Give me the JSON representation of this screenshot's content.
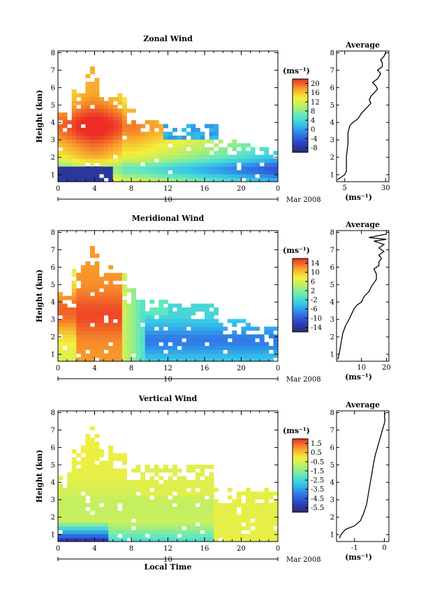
{
  "chart_data": [
    {
      "type": "heatmap",
      "title": "Zonal Wind",
      "ylabel": "Height (km)",
      "xlabel": "",
      "unit_label": "(ms⁻¹)",
      "date_label": "Mar 2008",
      "day_label": "10",
      "x_ticks": [
        "0",
        "4",
        "8",
        "12",
        "16",
        "20",
        "0"
      ],
      "x_range": [
        0,
        24
      ],
      "y_ticks": [
        "1",
        "2",
        "3",
        "4",
        "5",
        "6",
        "7",
        "8"
      ],
      "y_range": [
        0.6,
        8.1
      ],
      "colorbar": {
        "ticks": [
          "20",
          "16",
          "12",
          "8",
          "4",
          "0",
          "-4",
          "-8"
        ],
        "range": [
          -10,
          22
        ]
      },
      "kind": "zonal"
    },
    {
      "type": "heatmap",
      "title": "Meridional Wind",
      "ylabel": "Height (km)",
      "xlabel": "",
      "unit_label": "(ms⁻¹)",
      "date_label": "Mar 2008",
      "day_label": "10",
      "x_ticks": [
        "0",
        "4",
        "8",
        "12",
        "16",
        "20",
        "0"
      ],
      "x_range": [
        0,
        24
      ],
      "y_ticks": [
        "1",
        "2",
        "3",
        "4",
        "5",
        "6",
        "7",
        "8"
      ],
      "y_range": [
        0.6,
        8.1
      ],
      "colorbar": {
        "ticks": [
          "14",
          "10",
          "6",
          "2",
          "-2",
          "-6",
          "-10",
          "-14"
        ],
        "range": [
          -16,
          16
        ]
      },
      "kind": "meridional"
    },
    {
      "type": "heatmap",
      "title": "Vertical Wind",
      "ylabel": "Height (km)",
      "xlabel": "Local Time",
      "unit_label": "(ms⁻¹)",
      "date_label": "Mar 2008",
      "day_label": "10",
      "x_ticks": [
        "0",
        "4",
        "8",
        "12",
        "16",
        "20",
        "0"
      ],
      "x_range": [
        0,
        24
      ],
      "y_ticks": [
        "1",
        "2",
        "3",
        "4",
        "5",
        "6",
        "7",
        "8"
      ],
      "y_range": [
        0.6,
        8.1
      ],
      "colorbar": {
        "ticks": [
          "1.5",
          "0.5",
          "-0.5",
          "-1.5",
          "-2.5",
          "-3.5",
          "-4.5",
          "-5.5"
        ],
        "range": [
          -6,
          2
        ]
      },
      "kind": "vertical"
    },
    {
      "type": "line",
      "title": "Average",
      "xlabel": "(ms⁻¹)",
      "x_ticks": [
        "5",
        "30"
      ],
      "x_tick_values": [
        5,
        30
      ],
      "x_range": [
        0,
        32
      ],
      "y_ticks": [
        "1",
        "2",
        "3",
        "4",
        "5",
        "6",
        "7",
        "8"
      ],
      "y_range": [
        0.6,
        8.1
      ],
      "x": [
        0.5,
        2,
        5,
        6,
        6,
        6,
        6.5,
        7,
        7,
        7,
        7.5,
        8,
        10,
        13,
        15,
        17,
        19,
        21,
        20,
        21,
        23,
        25,
        24,
        22,
        25,
        27,
        25,
        28,
        28,
        27,
        29,
        30
      ],
      "y": [
        0.7,
        0.8,
        1.0,
        1.2,
        1.6,
        2.0,
        2.4,
        2.8,
        3.1,
        3.4,
        3.6,
        3.8,
        4.0,
        4.2,
        4.5,
        4.7,
        4.9,
        5.1,
        5.3,
        5.5,
        5.7,
        5.9,
        6.1,
        6.3,
        6.5,
        6.8,
        7.0,
        7.2,
        7.4,
        7.6,
        7.8,
        8.0
      ]
    },
    {
      "type": "line",
      "title": "Average",
      "xlabel": "(ms⁻¹)",
      "x_ticks": [
        "10",
        "20"
      ],
      "x_tick_values": [
        10,
        20
      ],
      "x_range": [
        0,
        21
      ],
      "y_ticks": [
        "1",
        "2",
        "3",
        "4",
        "5",
        "6",
        "7",
        "8"
      ],
      "y_range": [
        0.6,
        8.1
      ],
      "x": [
        0.5,
        1,
        1.5,
        2,
        2.5,
        3.5,
        5,
        6,
        7,
        8,
        10,
        11,
        13,
        14,
        15,
        16,
        16,
        15,
        17,
        17,
        18,
        17,
        19,
        17,
        19,
        15,
        20,
        13,
        20
      ],
      "y": [
        0.7,
        1.0,
        1.4,
        1.8,
        2.2,
        2.6,
        3.0,
        3.3,
        3.6,
        3.8,
        4.0,
        4.3,
        4.6,
        4.9,
        5.1,
        5.3,
        5.6,
        5.9,
        6.1,
        6.3,
        6.5,
        6.7,
        6.9,
        7.1,
        7.3,
        7.5,
        7.6,
        7.7,
        7.9
      ]
    },
    {
      "type": "line",
      "title": "Average",
      "xlabel": "(ms⁻¹)",
      "x_ticks": [
        "-1",
        "0"
      ],
      "x_tick_values": [
        -1,
        0
      ],
      "x_range": [
        -1.6,
        0.15
      ],
      "y_ticks": [
        "1",
        "2",
        "3",
        "4",
        "5",
        "6",
        "7",
        "8"
      ],
      "y_range": [
        0.6,
        8.1
      ],
      "x": [
        -1.5,
        -1.45,
        -1.3,
        -1.0,
        -0.8,
        -0.7,
        -0.6,
        -0.55,
        -0.5,
        -0.45,
        -0.4,
        -0.35,
        -0.3,
        -0.25,
        -0.2,
        -0.15,
        -0.1,
        -0.05,
        0.0,
        0.02,
        0.0,
        0.03
      ],
      "y": [
        0.8,
        1.0,
        1.3,
        1.5,
        1.8,
        2.2,
        2.7,
        3.2,
        3.7,
        4.2,
        4.7,
        5.2,
        5.6,
        5.9,
        6.2,
        6.5,
        6.8,
        7.1,
        7.4,
        7.6,
        7.8,
        8.0
      ]
    }
  ]
}
